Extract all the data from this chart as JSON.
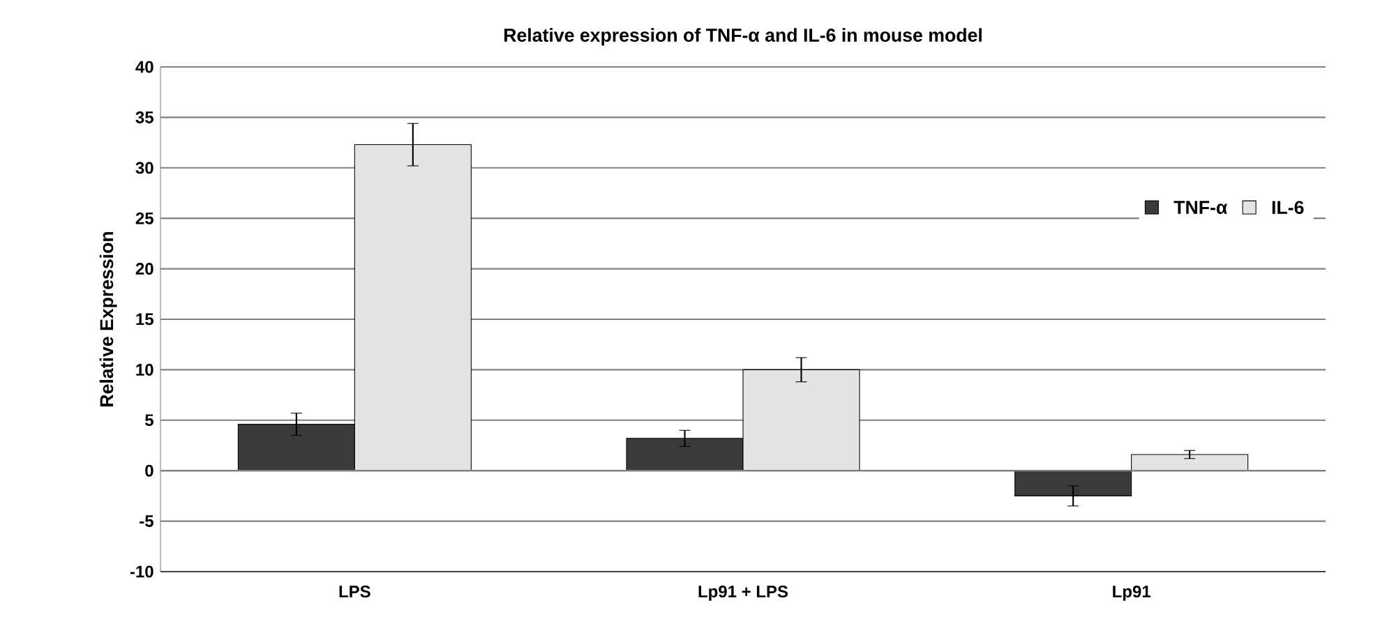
{
  "chart_data": {
    "type": "bar",
    "title": "Relative expression of TNF-α and IL-6 in mouse model",
    "ylabel": "Relative Expression",
    "categories": [
      "LPS",
      "Lp91 + LPS",
      "Lp91"
    ],
    "series": [
      {
        "name": "TNF-α",
        "color": "#3a3a3a",
        "values": [
          4.6,
          3.2,
          -2.5
        ],
        "errors": [
          1.1,
          0.8,
          1.0
        ]
      },
      {
        "name": "IL-6",
        "color": "#e4e4e4",
        "values": [
          32.3,
          10.0,
          1.6
        ],
        "errors": [
          2.1,
          1.2,
          0.4
        ]
      }
    ],
    "ylim": [
      -10,
      40
    ],
    "yticks": [
      -10,
      -5,
      0,
      5,
      10,
      15,
      20,
      25,
      30,
      35,
      40
    ],
    "grid": "y",
    "legend": "top right"
  }
}
